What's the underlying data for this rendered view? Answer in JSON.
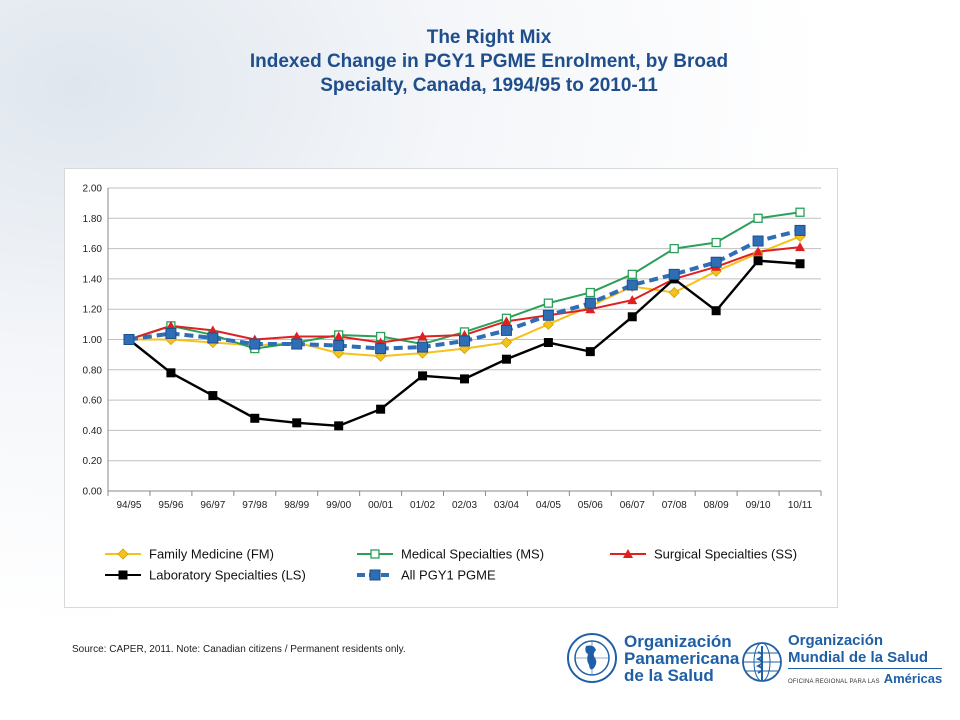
{
  "header": {
    "line1": "The Right Mix",
    "line2": "Indexed Change in PGY1 PGME Enrolment, by Broad",
    "line3": "Specialty, Canada, 1994/95 to 2010-11"
  },
  "chart_data": {
    "type": "line",
    "title": "",
    "xlabel": "",
    "ylabel": "",
    "ylim": [
      0,
      2
    ],
    "yticks": [
      "0.00",
      "0.20",
      "0.40",
      "0.60",
      "0.80",
      "1.00",
      "1.20",
      "1.40",
      "1.60",
      "1.80",
      "2.00"
    ],
    "grid": true,
    "legend_position": "bottom",
    "categories": [
      "94/95",
      "95/96",
      "96/97",
      "97/98",
      "98/99",
      "99/00",
      "00/01",
      "01/02",
      "02/03",
      "03/04",
      "04/05",
      "05/06",
      "06/07",
      "07/08",
      "08/09",
      "09/10",
      "10/11"
    ],
    "series": [
      {
        "name": "Family Medicine (FM)",
        "color": "#f5c21b",
        "marker": "diamond",
        "dash": false,
        "values": [
          1.0,
          1.0,
          0.98,
          0.96,
          0.98,
          0.91,
          0.89,
          0.91,
          0.94,
          0.98,
          1.1,
          1.22,
          1.35,
          1.31,
          1.45,
          1.57,
          1.68
        ]
      },
      {
        "name": "Medical Specialties (MS)",
        "color": "#2aa05a",
        "marker": "square-open",
        "dash": false,
        "values": [
          1.0,
          1.09,
          1.03,
          0.94,
          0.98,
          1.03,
          1.02,
          0.97,
          1.05,
          1.14,
          1.24,
          1.31,
          1.43,
          1.6,
          1.64,
          1.8,
          1.84
        ]
      },
      {
        "name": "Surgical Specialties (SS)",
        "color": "#e02020",
        "marker": "triangle",
        "dash": false,
        "values": [
          1.0,
          1.09,
          1.06,
          1.0,
          1.02,
          1.02,
          0.98,
          1.02,
          1.03,
          1.12,
          1.16,
          1.2,
          1.26,
          1.4,
          1.48,
          1.58,
          1.61
        ]
      },
      {
        "name": "Laboratory Specialties (LS)",
        "color": "#000000",
        "marker": "square",
        "dash": false,
        "values": [
          1.0,
          0.78,
          0.63,
          0.48,
          0.45,
          0.43,
          0.54,
          0.76,
          0.74,
          0.87,
          0.98,
          0.92,
          1.15,
          1.4,
          1.19,
          1.52,
          1.5
        ]
      },
      {
        "name": "All PGY1 PGME",
        "color": "#2f6db5",
        "marker": "square-blue",
        "dash": true,
        "values": [
          1.0,
          1.04,
          1.01,
          0.97,
          0.97,
          0.96,
          0.94,
          0.95,
          0.99,
          1.06,
          1.16,
          1.24,
          1.36,
          1.43,
          1.51,
          1.65,
          1.72
        ]
      }
    ]
  },
  "footer": {
    "source": "Source: CAPER, 2011.  Note: Canadian citizens / Permanent residents only."
  },
  "logos": {
    "ops_line1": "Organización",
    "ops_line2": "Panamericana",
    "ops_line3": "de la Salud",
    "oms_line1": "Organización",
    "oms_line2": "Mundial de la Salud",
    "oms_sub": "OFICINA REGIONAL PARA LAS",
    "oms_region": "Américas",
    "ops_icon": "paho-globe-emblem-icon",
    "oms_icon": "who-emblem-icon"
  }
}
